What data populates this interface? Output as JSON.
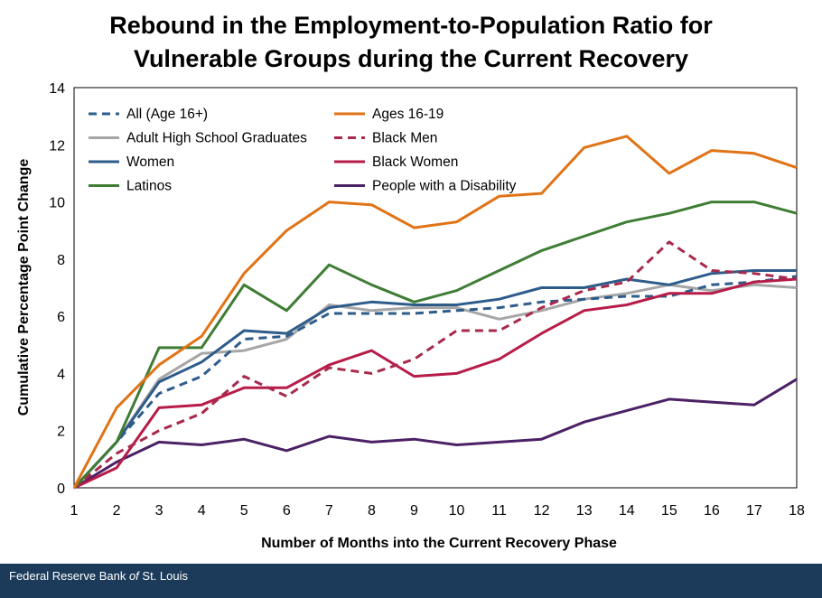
{
  "chart_data": {
    "type": "line",
    "title_line1": "Rebound in the Employment-to-Population Ratio for",
    "title_line2": "Vulnerable Groups during the Current Recovery",
    "xlabel": "Number of Months into the Current Recovery Phase",
    "ylabel": "Cumulative Percentage Point Change",
    "xlim": [
      1,
      18
    ],
    "ylim": [
      0,
      14
    ],
    "x": [
      1,
      2,
      3,
      4,
      5,
      6,
      7,
      8,
      9,
      10,
      11,
      12,
      13,
      14,
      15,
      16,
      17,
      18
    ],
    "yticks": [
      0,
      2,
      4,
      6,
      8,
      10,
      12,
      14
    ],
    "series": [
      {
        "name": "All (Age 16+)",
        "color": "#2e5c8a",
        "dash": true,
        "values": [
          0,
          1.6,
          3.3,
          3.9,
          5.2,
          5.3,
          6.1,
          6.1,
          6.1,
          6.2,
          6.3,
          6.5,
          6.6,
          6.7,
          6.7,
          7.1,
          7.2,
          7.4
        ]
      },
      {
        "name": "Ages 16-19",
        "color": "#e07316",
        "dash": false,
        "values": [
          0,
          2.8,
          4.3,
          5.3,
          7.5,
          9.0,
          10.0,
          9.9,
          9.1,
          9.3,
          10.2,
          10.3,
          11.9,
          12.3,
          11.0,
          11.8,
          11.7,
          11.2
        ]
      },
      {
        "name": "Adult High School Graduates",
        "color": "#a6a6a6",
        "dash": false,
        "values": [
          0,
          1.6,
          3.8,
          4.7,
          4.8,
          5.2,
          6.4,
          6.2,
          6.3,
          6.3,
          5.9,
          6.2,
          6.6,
          6.8,
          7.1,
          6.9,
          7.1,
          7.0
        ]
      },
      {
        "name": "Black Men",
        "color": "#a8294b",
        "dash": true,
        "values": [
          0,
          1.2,
          2.0,
          2.6,
          3.9,
          3.2,
          4.2,
          4.0,
          4.5,
          5.5,
          5.5,
          6.3,
          6.9,
          7.2,
          8.6,
          7.6,
          7.5,
          7.3
        ]
      },
      {
        "name": "Women",
        "color": "#2e5c8a",
        "dash": false,
        "values": [
          0,
          1.6,
          3.7,
          4.4,
          5.5,
          5.4,
          6.3,
          6.5,
          6.4,
          6.4,
          6.6,
          7.0,
          7.0,
          7.3,
          7.1,
          7.5,
          7.6,
          7.6
        ]
      },
      {
        "name": "Black Women",
        "color": "#b71c48",
        "dash": false,
        "values": [
          0,
          0.7,
          2.8,
          2.9,
          3.5,
          3.5,
          4.3,
          4.8,
          3.9,
          4.0,
          4.5,
          5.4,
          6.2,
          6.4,
          6.8,
          6.8,
          7.2,
          7.3
        ]
      },
      {
        "name": "Latinos",
        "color": "#3f7d35",
        "dash": false,
        "values": [
          0,
          1.6,
          4.9,
          4.9,
          7.1,
          6.2,
          7.8,
          7.1,
          6.5,
          6.9,
          7.6,
          8.3,
          8.8,
          9.3,
          9.6,
          10.0,
          10.0,
          9.6
        ]
      },
      {
        "name": "People with a Disability",
        "color": "#4b2165",
        "dash": false,
        "values": [
          0,
          0.9,
          1.6,
          1.5,
          1.7,
          1.3,
          1.8,
          1.6,
          1.7,
          1.5,
          1.6,
          1.7,
          2.3,
          2.7,
          3.1,
          3.0,
          2.9,
          3.8
        ]
      }
    ],
    "legend_position": "top-left, inside plot, two columns"
  },
  "footer": {
    "org_pre": "Federal Reserve Bank ",
    "org_of": "of",
    "org_post": " St. Louis"
  }
}
